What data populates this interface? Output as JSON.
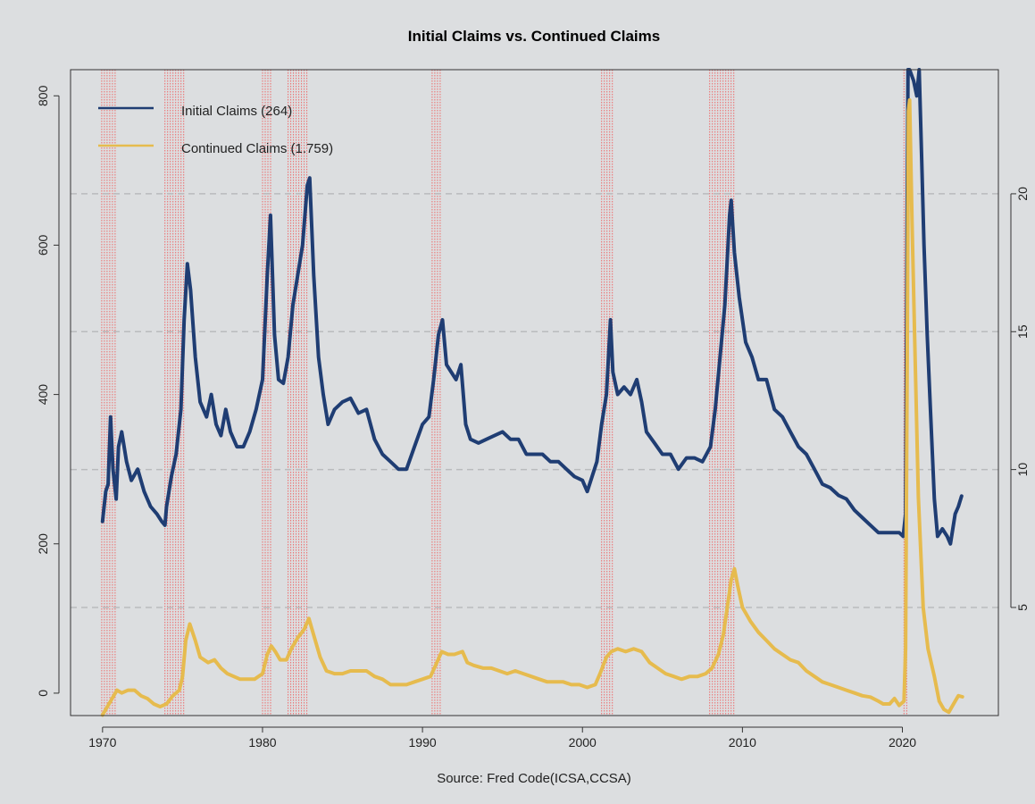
{
  "chart_data": {
    "type": "line",
    "title": "Initial Claims vs. Continued Claims",
    "caption": "Source: Fred Code(ICSA,CCSA)",
    "x_ticks": [
      "1970",
      "1980",
      "1990",
      "2000",
      "2010",
      "2020"
    ],
    "xlim": [
      1968,
      2026
    ],
    "left_axis": {
      "ticks": [
        "0",
        "200",
        "400",
        "600",
        "800"
      ],
      "ylim": [
        -30,
        835
      ]
    },
    "right_axis": {
      "ticks": [
        "5",
        "10",
        "15",
        "20"
      ],
      "ylim": [
        1.08,
        24.5
      ]
    },
    "grid": "horizontal dashed at right-axis ticks",
    "legend_position": "top-left",
    "recessions": [
      [
        1969.95,
        1970.9
      ],
      [
        1973.9,
        1975.2
      ],
      [
        1980.0,
        1980.55
      ],
      [
        1981.6,
        1982.9
      ],
      [
        1990.6,
        1991.25
      ],
      [
        2001.2,
        2001.9
      ],
      [
        2007.95,
        2009.5
      ],
      [
        2020.1,
        2020.35
      ]
    ],
    "series": [
      {
        "name": "Initial Claims (264)",
        "axis": "left",
        "color": "#1f3d73",
        "points": [
          [
            1970.0,
            230
          ],
          [
            1970.2,
            270
          ],
          [
            1970.35,
            280
          ],
          [
            1970.5,
            370
          ],
          [
            1970.65,
            300
          ],
          [
            1970.85,
            260
          ],
          [
            1971.0,
            330
          ],
          [
            1971.2,
            350
          ],
          [
            1971.5,
            310
          ],
          [
            1971.8,
            285
          ],
          [
            1972.2,
            300
          ],
          [
            1972.6,
            270
          ],
          [
            1973.0,
            250
          ],
          [
            1973.4,
            240
          ],
          [
            1973.7,
            230
          ],
          [
            1973.9,
            225
          ],
          [
            1974.0,
            250
          ],
          [
            1974.3,
            290
          ],
          [
            1974.6,
            320
          ],
          [
            1974.9,
            380
          ],
          [
            1975.1,
            500
          ],
          [
            1975.3,
            575
          ],
          [
            1975.5,
            540
          ],
          [
            1975.8,
            450
          ],
          [
            1976.1,
            390
          ],
          [
            1976.5,
            370
          ],
          [
            1976.8,
            400
          ],
          [
            1977.1,
            360
          ],
          [
            1977.4,
            345
          ],
          [
            1977.7,
            380
          ],
          [
            1978.0,
            350
          ],
          [
            1978.4,
            330
          ],
          [
            1978.8,
            330
          ],
          [
            1979.2,
            350
          ],
          [
            1979.6,
            380
          ],
          [
            1980.0,
            420
          ],
          [
            1980.3,
            560
          ],
          [
            1980.5,
            640
          ],
          [
            1980.75,
            480
          ],
          [
            1981.0,
            420
          ],
          [
            1981.3,
            415
          ],
          [
            1981.6,
            450
          ],
          [
            1981.9,
            520
          ],
          [
            1982.2,
            560
          ],
          [
            1982.5,
            600
          ],
          [
            1982.8,
            680
          ],
          [
            1982.95,
            690
          ],
          [
            1983.2,
            560
          ],
          [
            1983.5,
            450
          ],
          [
            1983.8,
            400
          ],
          [
            1984.1,
            360
          ],
          [
            1984.5,
            380
          ],
          [
            1985.0,
            390
          ],
          [
            1985.5,
            395
          ],
          [
            1986.0,
            375
          ],
          [
            1986.5,
            380
          ],
          [
            1987.0,
            340
          ],
          [
            1987.5,
            320
          ],
          [
            1988.0,
            310
          ],
          [
            1988.5,
            300
          ],
          [
            1989.0,
            300
          ],
          [
            1989.5,
            330
          ],
          [
            1990.0,
            360
          ],
          [
            1990.4,
            370
          ],
          [
            1990.7,
            420
          ],
          [
            1991.0,
            480
          ],
          [
            1991.25,
            500
          ],
          [
            1991.5,
            440
          ],
          [
            1991.8,
            430
          ],
          [
            1992.1,
            420
          ],
          [
            1992.4,
            440
          ],
          [
            1992.7,
            360
          ],
          [
            1993.0,
            340
          ],
          [
            1993.5,
            335
          ],
          [
            1994.0,
            340
          ],
          [
            1994.5,
            345
          ],
          [
            1995.0,
            350
          ],
          [
            1995.5,
            340
          ],
          [
            1996.0,
            340
          ],
          [
            1996.5,
            320
          ],
          [
            1997.0,
            320
          ],
          [
            1997.5,
            320
          ],
          [
            1998.0,
            310
          ],
          [
            1998.5,
            310
          ],
          [
            1999.0,
            300
          ],
          [
            1999.5,
            290
          ],
          [
            2000.0,
            285
          ],
          [
            2000.3,
            270
          ],
          [
            2000.6,
            290
          ],
          [
            2000.9,
            310
          ],
          [
            2001.2,
            360
          ],
          [
            2001.5,
            400
          ],
          [
            2001.75,
            500
          ],
          [
            2001.9,
            430
          ],
          [
            2002.2,
            400
          ],
          [
            2002.6,
            410
          ],
          [
            2003.0,
            400
          ],
          [
            2003.4,
            420
          ],
          [
            2003.7,
            390
          ],
          [
            2004.0,
            350
          ],
          [
            2004.5,
            335
          ],
          [
            2005.0,
            320
          ],
          [
            2005.5,
            320
          ],
          [
            2006.0,
            300
          ],
          [
            2006.5,
            315
          ],
          [
            2007.0,
            315
          ],
          [
            2007.5,
            310
          ],
          [
            2008.0,
            330
          ],
          [
            2008.3,
            380
          ],
          [
            2008.6,
            450
          ],
          [
            2008.9,
            520
          ],
          [
            2009.2,
            640
          ],
          [
            2009.3,
            660
          ],
          [
            2009.5,
            590
          ],
          [
            2009.8,
            530
          ],
          [
            2010.2,
            470
          ],
          [
            2010.6,
            450
          ],
          [
            2011.0,
            420
          ],
          [
            2011.5,
            420
          ],
          [
            2012.0,
            380
          ],
          [
            2012.5,
            370
          ],
          [
            2013.0,
            350
          ],
          [
            2013.5,
            330
          ],
          [
            2014.0,
            320
          ],
          [
            2014.5,
            300
          ],
          [
            2015.0,
            280
          ],
          [
            2015.5,
            275
          ],
          [
            2016.0,
            265
          ],
          [
            2016.5,
            260
          ],
          [
            2017.0,
            245
          ],
          [
            2017.5,
            235
          ],
          [
            2018.0,
            225
          ],
          [
            2018.5,
            215
          ],
          [
            2019.0,
            215
          ],
          [
            2019.5,
            215
          ],
          [
            2019.8,
            215
          ],
          [
            2020.05,
            210
          ],
          [
            2020.2,
            240
          ],
          [
            2020.3,
            650
          ],
          [
            2020.35,
            900
          ],
          [
            2020.45,
            840
          ],
          [
            2020.7,
            820
          ],
          [
            2020.9,
            800
          ],
          [
            2021.05,
            840
          ],
          [
            2021.2,
            720
          ],
          [
            2021.35,
            600
          ],
          [
            2021.55,
            480
          ],
          [
            2021.75,
            380
          ],
          [
            2022.0,
            260
          ],
          [
            2022.2,
            210
          ],
          [
            2022.5,
            220
          ],
          [
            2022.8,
            210
          ],
          [
            2023.0,
            200
          ],
          [
            2023.3,
            240
          ],
          [
            2023.5,
            250
          ],
          [
            2023.7,
            264
          ]
        ]
      },
      {
        "name": "Continued Claims (1.759)",
        "axis": "right",
        "color": "#e6bb4e",
        "points": [
          [
            1970.0,
            1.1
          ],
          [
            1970.3,
            1.4
          ],
          [
            1970.6,
            1.7
          ],
          [
            1970.9,
            2.0
          ],
          [
            1971.2,
            1.9
          ],
          [
            1971.6,
            2.0
          ],
          [
            1972.0,
            2.0
          ],
          [
            1972.4,
            1.8
          ],
          [
            1972.8,
            1.7
          ],
          [
            1973.2,
            1.5
          ],
          [
            1973.6,
            1.4
          ],
          [
            1974.0,
            1.5
          ],
          [
            1974.4,
            1.8
          ],
          [
            1974.8,
            2.0
          ],
          [
            1975.0,
            2.5
          ],
          [
            1975.2,
            3.8
          ],
          [
            1975.45,
            4.4
          ],
          [
            1975.8,
            3.8
          ],
          [
            1976.1,
            3.2
          ],
          [
            1976.6,
            3.0
          ],
          [
            1977.0,
            3.1
          ],
          [
            1977.4,
            2.8
          ],
          [
            1977.8,
            2.6
          ],
          [
            1978.2,
            2.5
          ],
          [
            1978.6,
            2.4
          ],
          [
            1979.0,
            2.4
          ],
          [
            1979.5,
            2.4
          ],
          [
            1980.0,
            2.6
          ],
          [
            1980.3,
            3.3
          ],
          [
            1980.55,
            3.6
          ],
          [
            1980.8,
            3.4
          ],
          [
            1981.1,
            3.1
          ],
          [
            1981.5,
            3.1
          ],
          [
            1981.8,
            3.5
          ],
          [
            1982.2,
            3.9
          ],
          [
            1982.6,
            4.2
          ],
          [
            1982.9,
            4.6
          ],
          [
            1983.2,
            4.0
          ],
          [
            1983.6,
            3.2
          ],
          [
            1984.0,
            2.7
          ],
          [
            1984.5,
            2.6
          ],
          [
            1985.0,
            2.6
          ],
          [
            1985.5,
            2.7
          ],
          [
            1986.0,
            2.7
          ],
          [
            1986.5,
            2.7
          ],
          [
            1987.0,
            2.5
          ],
          [
            1987.5,
            2.4
          ],
          [
            1988.0,
            2.2
          ],
          [
            1988.5,
            2.2
          ],
          [
            1989.0,
            2.2
          ],
          [
            1989.5,
            2.3
          ],
          [
            1990.0,
            2.4
          ],
          [
            1990.5,
            2.5
          ],
          [
            1990.9,
            3.0
          ],
          [
            1991.2,
            3.4
          ],
          [
            1991.6,
            3.3
          ],
          [
            1992.0,
            3.3
          ],
          [
            1992.5,
            3.4
          ],
          [
            1992.8,
            3.0
          ],
          [
            1993.2,
            2.9
          ],
          [
            1993.8,
            2.8
          ],
          [
            1994.3,
            2.8
          ],
          [
            1994.8,
            2.7
          ],
          [
            1995.3,
            2.6
          ],
          [
            1995.8,
            2.7
          ],
          [
            1996.3,
            2.6
          ],
          [
            1996.8,
            2.5
          ],
          [
            1997.3,
            2.4
          ],
          [
            1997.8,
            2.3
          ],
          [
            1998.3,
            2.3
          ],
          [
            1998.8,
            2.3
          ],
          [
            1999.3,
            2.2
          ],
          [
            1999.8,
            2.2
          ],
          [
            2000.3,
            2.1
          ],
          [
            2000.8,
            2.2
          ],
          [
            2001.1,
            2.6
          ],
          [
            2001.5,
            3.2
          ],
          [
            2001.8,
            3.4
          ],
          [
            2002.2,
            3.5
          ],
          [
            2002.7,
            3.4
          ],
          [
            2003.2,
            3.5
          ],
          [
            2003.7,
            3.4
          ],
          [
            2004.2,
            3.0
          ],
          [
            2004.7,
            2.8
          ],
          [
            2005.2,
            2.6
          ],
          [
            2005.7,
            2.5
          ],
          [
            2006.2,
            2.4
          ],
          [
            2006.7,
            2.5
          ],
          [
            2007.2,
            2.5
          ],
          [
            2007.7,
            2.6
          ],
          [
            2008.1,
            2.8
          ],
          [
            2008.5,
            3.3
          ],
          [
            2008.8,
            4.0
          ],
          [
            2009.1,
            5.2
          ],
          [
            2009.3,
            6.0
          ],
          [
            2009.5,
            6.4
          ],
          [
            2009.7,
            5.8
          ],
          [
            2010.0,
            5.0
          ],
          [
            2010.5,
            4.5
          ],
          [
            2011.0,
            4.1
          ],
          [
            2011.5,
            3.8
          ],
          [
            2012.0,
            3.5
          ],
          [
            2012.5,
            3.3
          ],
          [
            2013.0,
            3.1
          ],
          [
            2013.5,
            3.0
          ],
          [
            2014.0,
            2.7
          ],
          [
            2014.5,
            2.5
          ],
          [
            2015.0,
            2.3
          ],
          [
            2015.5,
            2.2
          ],
          [
            2016.0,
            2.1
          ],
          [
            2016.5,
            2.0
          ],
          [
            2017.0,
            1.9
          ],
          [
            2017.5,
            1.8
          ],
          [
            2018.0,
            1.75
          ],
          [
            2018.5,
            1.6
          ],
          [
            2018.8,
            1.5
          ],
          [
            2019.2,
            1.5
          ],
          [
            2019.5,
            1.7
          ],
          [
            2019.8,
            1.45
          ],
          [
            2020.1,
            1.6
          ],
          [
            2020.2,
            3.5
          ],
          [
            2020.3,
            14.0
          ],
          [
            2020.38,
            23.0
          ],
          [
            2020.45,
            23.4
          ],
          [
            2020.6,
            19.0
          ],
          [
            2020.8,
            14.0
          ],
          [
            2021.0,
            9.0
          ],
          [
            2021.3,
            5.0
          ],
          [
            2021.6,
            3.5
          ],
          [
            2022.0,
            2.5
          ],
          [
            2022.3,
            1.6
          ],
          [
            2022.6,
            1.3
          ],
          [
            2022.9,
            1.2
          ],
          [
            2023.2,
            1.5
          ],
          [
            2023.5,
            1.8
          ],
          [
            2023.75,
            1.76
          ]
        ]
      }
    ]
  }
}
